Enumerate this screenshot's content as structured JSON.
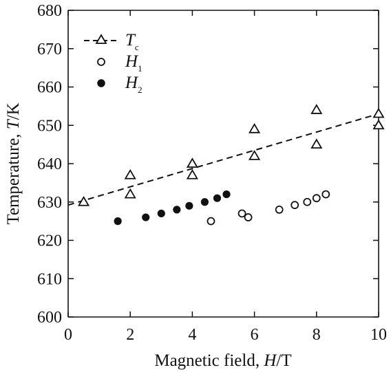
{
  "chart_data": {
    "type": "scatter",
    "xlabel_prefix": "Magnetic field, ",
    "xlabel_var": "H",
    "xlabel_unit": "/T",
    "ylabel_prefix": "Temperature, ",
    "ylabel_var": "T",
    "ylabel_unit": "/K",
    "xlim": [
      0,
      10
    ],
    "ylim": [
      600,
      680
    ],
    "x_ticks": [
      0,
      2,
      4,
      6,
      8,
      10
    ],
    "y_ticks": [
      600,
      610,
      620,
      630,
      640,
      650,
      660,
      670,
      680
    ],
    "legend_position": "top-left",
    "series": [
      {
        "name": "T",
        "name_sub": "c",
        "marker": "triangle-open",
        "line": "dashed",
        "points": [
          [
            0.5,
            630
          ],
          [
            2,
            637
          ],
          [
            2,
            632
          ],
          [
            4,
            640
          ],
          [
            4,
            637
          ],
          [
            6,
            649
          ],
          [
            6,
            642
          ],
          [
            8,
            654
          ],
          [
            8,
            645
          ],
          [
            10,
            653
          ],
          [
            10,
            650
          ]
        ],
        "fit_line": [
          [
            0,
            629.2
          ],
          [
            10,
            653
          ]
        ]
      },
      {
        "name": "H",
        "name_sub": "1",
        "marker": "circle-open",
        "line": "none",
        "points": [
          [
            4.6,
            625
          ],
          [
            5.6,
            627
          ],
          [
            5.8,
            626
          ],
          [
            6.8,
            628
          ],
          [
            7.3,
            629.2
          ],
          [
            7.7,
            630
          ],
          [
            8.0,
            631
          ],
          [
            8.3,
            632
          ]
        ]
      },
      {
        "name": "H",
        "name_sub": "2",
        "marker": "circle-filled",
        "line": "none",
        "points": [
          [
            1.6,
            625
          ],
          [
            2.5,
            626
          ],
          [
            3.0,
            627
          ],
          [
            3.5,
            628
          ],
          [
            3.9,
            629
          ],
          [
            4.4,
            630
          ],
          [
            4.8,
            631
          ],
          [
            5.1,
            632
          ]
        ]
      }
    ]
  }
}
